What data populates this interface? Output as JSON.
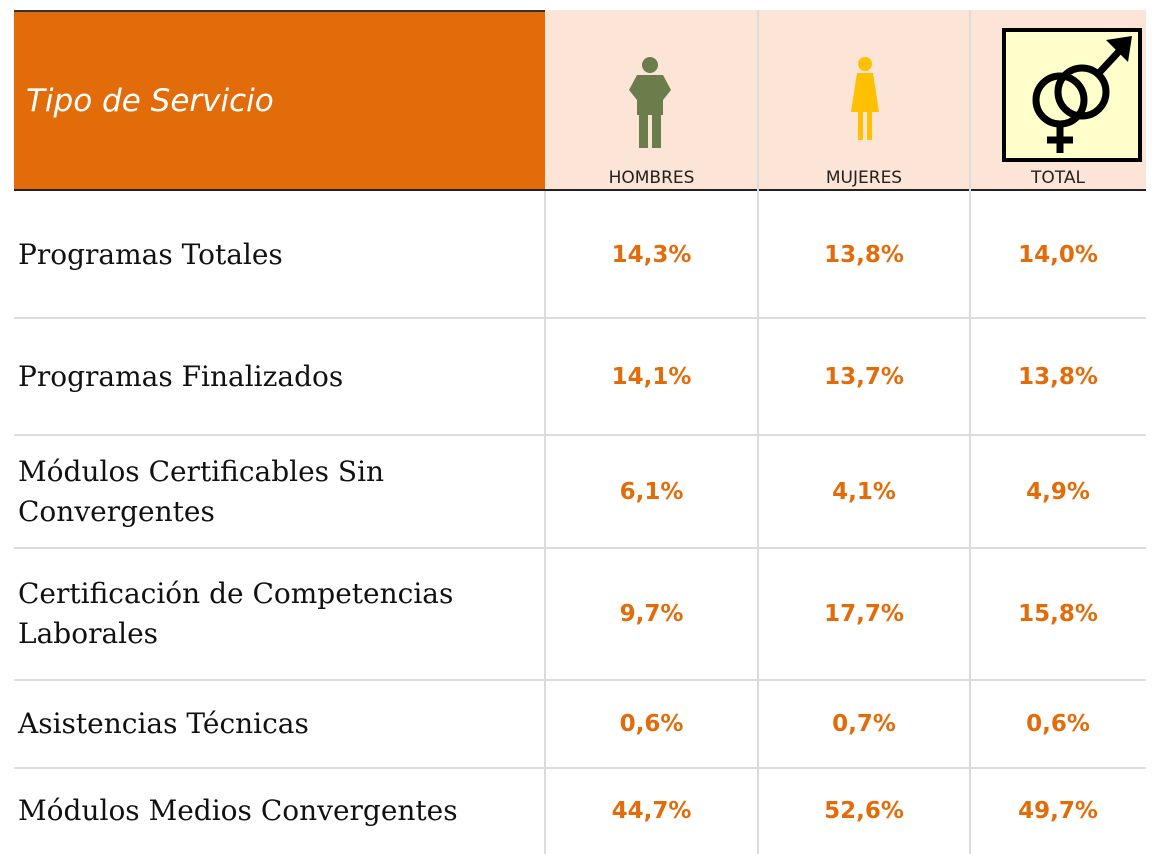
{
  "header": {
    "title": "Tipo de Servicio",
    "columns": [
      "HOMBRES",
      "MUJERES",
      "TOTAL"
    ]
  },
  "table": {
    "rows": [
      [
        "Programas Totales",
        "14,3%",
        "13,8%",
        "14,0%"
      ],
      [
        "Programas Finalizados",
        "14,1%",
        "13,7%",
        "13,8%"
      ],
      [
        "Módulos Certificables Sin Convergentes",
        "6,1%",
        "4,1%",
        "4,9%"
      ],
      [
        "Certificación de Competencias Laborales",
        "9,7%",
        "17,7%",
        "15,8%"
      ],
      [
        "Asistencias Técnicas",
        "0,6%",
        "0,7%",
        "0,6%"
      ],
      [
        "Módulos Medios Convergentes",
        "44,7%",
        "52,6%",
        "49,7%"
      ]
    ]
  }
}
